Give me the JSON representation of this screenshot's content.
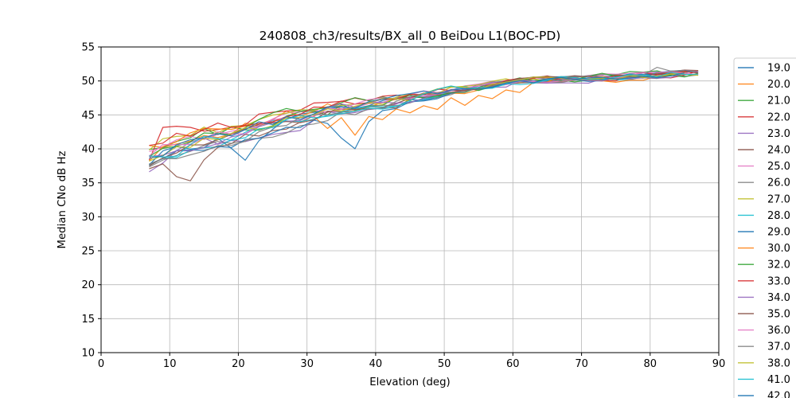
{
  "chart_data": {
    "type": "line",
    "title": "240808_ch3/results/BX_all_0 BeiDou L1(BOC-PD)",
    "xlabel": "Elevation (deg)",
    "ylabel": "Median CNo dB Hz",
    "xlim": [
      0,
      90
    ],
    "ylim": [
      10,
      55
    ],
    "xticks": [
      0,
      10,
      20,
      30,
      40,
      50,
      60,
      70,
      80,
      90
    ],
    "yticks": [
      10,
      15,
      20,
      25,
      30,
      35,
      40,
      45,
      50,
      55
    ],
    "grid": true,
    "legend_position": "right-outside-top",
    "x_start": 7,
    "x_end": 87,
    "x_step": 2,
    "trend": {
      "x": [
        7,
        10,
        14,
        18,
        22,
        26,
        30,
        34,
        38,
        42,
        46,
        50,
        54,
        58,
        62,
        66,
        70,
        74,
        78,
        82,
        87
      ],
      "y": [
        38.8,
        40.2,
        41.3,
        42.2,
        43.0,
        44.0,
        45.0,
        45.8,
        46.3,
        46.8,
        47.6,
        48.4,
        49.0,
        49.5,
        50.0,
        50.2,
        50.4,
        50.6,
        50.8,
        51.0,
        51.2
      ]
    },
    "series": [
      {
        "label": "19.0",
        "color": "#1f77b4",
        "seed": 1,
        "offset": -0.5,
        "noise": 0.9,
        "anchors": [
          [
            21,
            37.1
          ],
          [
            23,
            41.2
          ]
        ]
      },
      {
        "label": "20.0",
        "color": "#ff7f0e",
        "seed": 2,
        "offset": 0.8,
        "noise": 1.0,
        "anchors": []
      },
      {
        "label": "21.0",
        "color": "#2ca02c",
        "seed": 3,
        "offset": 0.5,
        "noise": 1.2,
        "anchors": []
      },
      {
        "label": "22.0",
        "color": "#d62728",
        "seed": 4,
        "offset": 2.0,
        "noise": 1.0,
        "anchors": [
          [
            7,
            36.3
          ],
          [
            9,
            43.1
          ],
          [
            11,
            43.3
          ],
          [
            13,
            43.4
          ],
          [
            15,
            42.6
          ],
          [
            19,
            43.2
          ]
        ]
      },
      {
        "label": "23.0",
        "color": "#9467bd",
        "seed": 5,
        "offset": -1.2,
        "noise": 1.1,
        "anchors": [
          [
            27,
            42.3
          ],
          [
            29,
            42.7
          ]
        ]
      },
      {
        "label": "24.0",
        "color": "#8c564b",
        "seed": 6,
        "offset": -1.5,
        "noise": 0.9,
        "anchors": [
          [
            9,
            38.3
          ],
          [
            11,
            36.6
          ],
          [
            13,
            34.3
          ],
          [
            15,
            37.6
          ],
          [
            17,
            40.2
          ]
        ]
      },
      {
        "label": "25.0",
        "color": "#e377c2",
        "seed": 7,
        "offset": 0.3,
        "noise": 0.8,
        "anchors": []
      },
      {
        "label": "26.0",
        "color": "#7f7f7f",
        "seed": 8,
        "offset": -1.8,
        "noise": 0.9,
        "anchors": []
      },
      {
        "label": "27.0",
        "color": "#bcbd22",
        "seed": 9,
        "offset": 1.0,
        "noise": 0.9,
        "anchors": []
      },
      {
        "label": "28.0",
        "color": "#17becf",
        "seed": 10,
        "offset": -0.8,
        "noise": 0.9,
        "anchors": []
      },
      {
        "label": "29.0",
        "color": "#1f77b4",
        "seed": 11,
        "offset": -2.0,
        "noise": 1.0,
        "anchors": [
          [
            35,
            43.0
          ],
          [
            37,
            38.3
          ],
          [
            39,
            44.0
          ]
        ]
      },
      {
        "label": "30.0",
        "color": "#ff7f0e",
        "seed": 12,
        "offset": 0.5,
        "noise": 1.1,
        "anchors": [
          [
            33,
            43.0
          ],
          [
            37,
            42.0
          ],
          [
            41,
            44.3
          ],
          [
            45,
            45.3
          ],
          [
            49,
            45.8
          ],
          [
            53,
            46.4
          ],
          [
            57,
            47.4
          ],
          [
            61,
            48.3
          ],
          [
            75,
            49.8
          ],
          [
            79,
            50.1
          ]
        ]
      },
      {
        "label": "32.0",
        "color": "#2ca02c",
        "seed": 13,
        "offset": 1.2,
        "noise": 1.1,
        "anchors": []
      },
      {
        "label": "33.0",
        "color": "#d62728",
        "seed": 14,
        "offset": 1.6,
        "noise": 0.9,
        "anchors": []
      },
      {
        "label": "34.0",
        "color": "#9467bd",
        "seed": 15,
        "offset": -0.3,
        "noise": 0.9,
        "anchors": []
      },
      {
        "label": "35.0",
        "color": "#8c564b",
        "seed": 16,
        "offset": -1.0,
        "noise": 0.8,
        "anchors": []
      },
      {
        "label": "36.0",
        "color": "#e377c2",
        "seed": 17,
        "offset": 0.6,
        "noise": 0.8,
        "anchors": []
      },
      {
        "label": "37.0",
        "color": "#7f7f7f",
        "seed": 18,
        "offset": -1.3,
        "noise": 0.9,
        "anchors": [
          [
            81,
            52.0
          ]
        ]
      },
      {
        "label": "38.0",
        "color": "#bcbd22",
        "seed": 19,
        "offset": 0.2,
        "noise": 0.9,
        "anchors": []
      },
      {
        "label": "41.0",
        "color": "#17becf",
        "seed": 20,
        "offset": -0.6,
        "noise": 0.9,
        "anchors": []
      },
      {
        "label": "42.0",
        "color": "#1f77b4",
        "seed": 21,
        "offset": 0.0,
        "noise": 0.9,
        "anchors": []
      }
    ]
  },
  "colors": {
    "background": "#ffffff",
    "grid": "#b8b8b8",
    "spine": "#000000",
    "text": "#000000",
    "legend_border": "#cccccc",
    "legend_background": "#ffffff"
  }
}
